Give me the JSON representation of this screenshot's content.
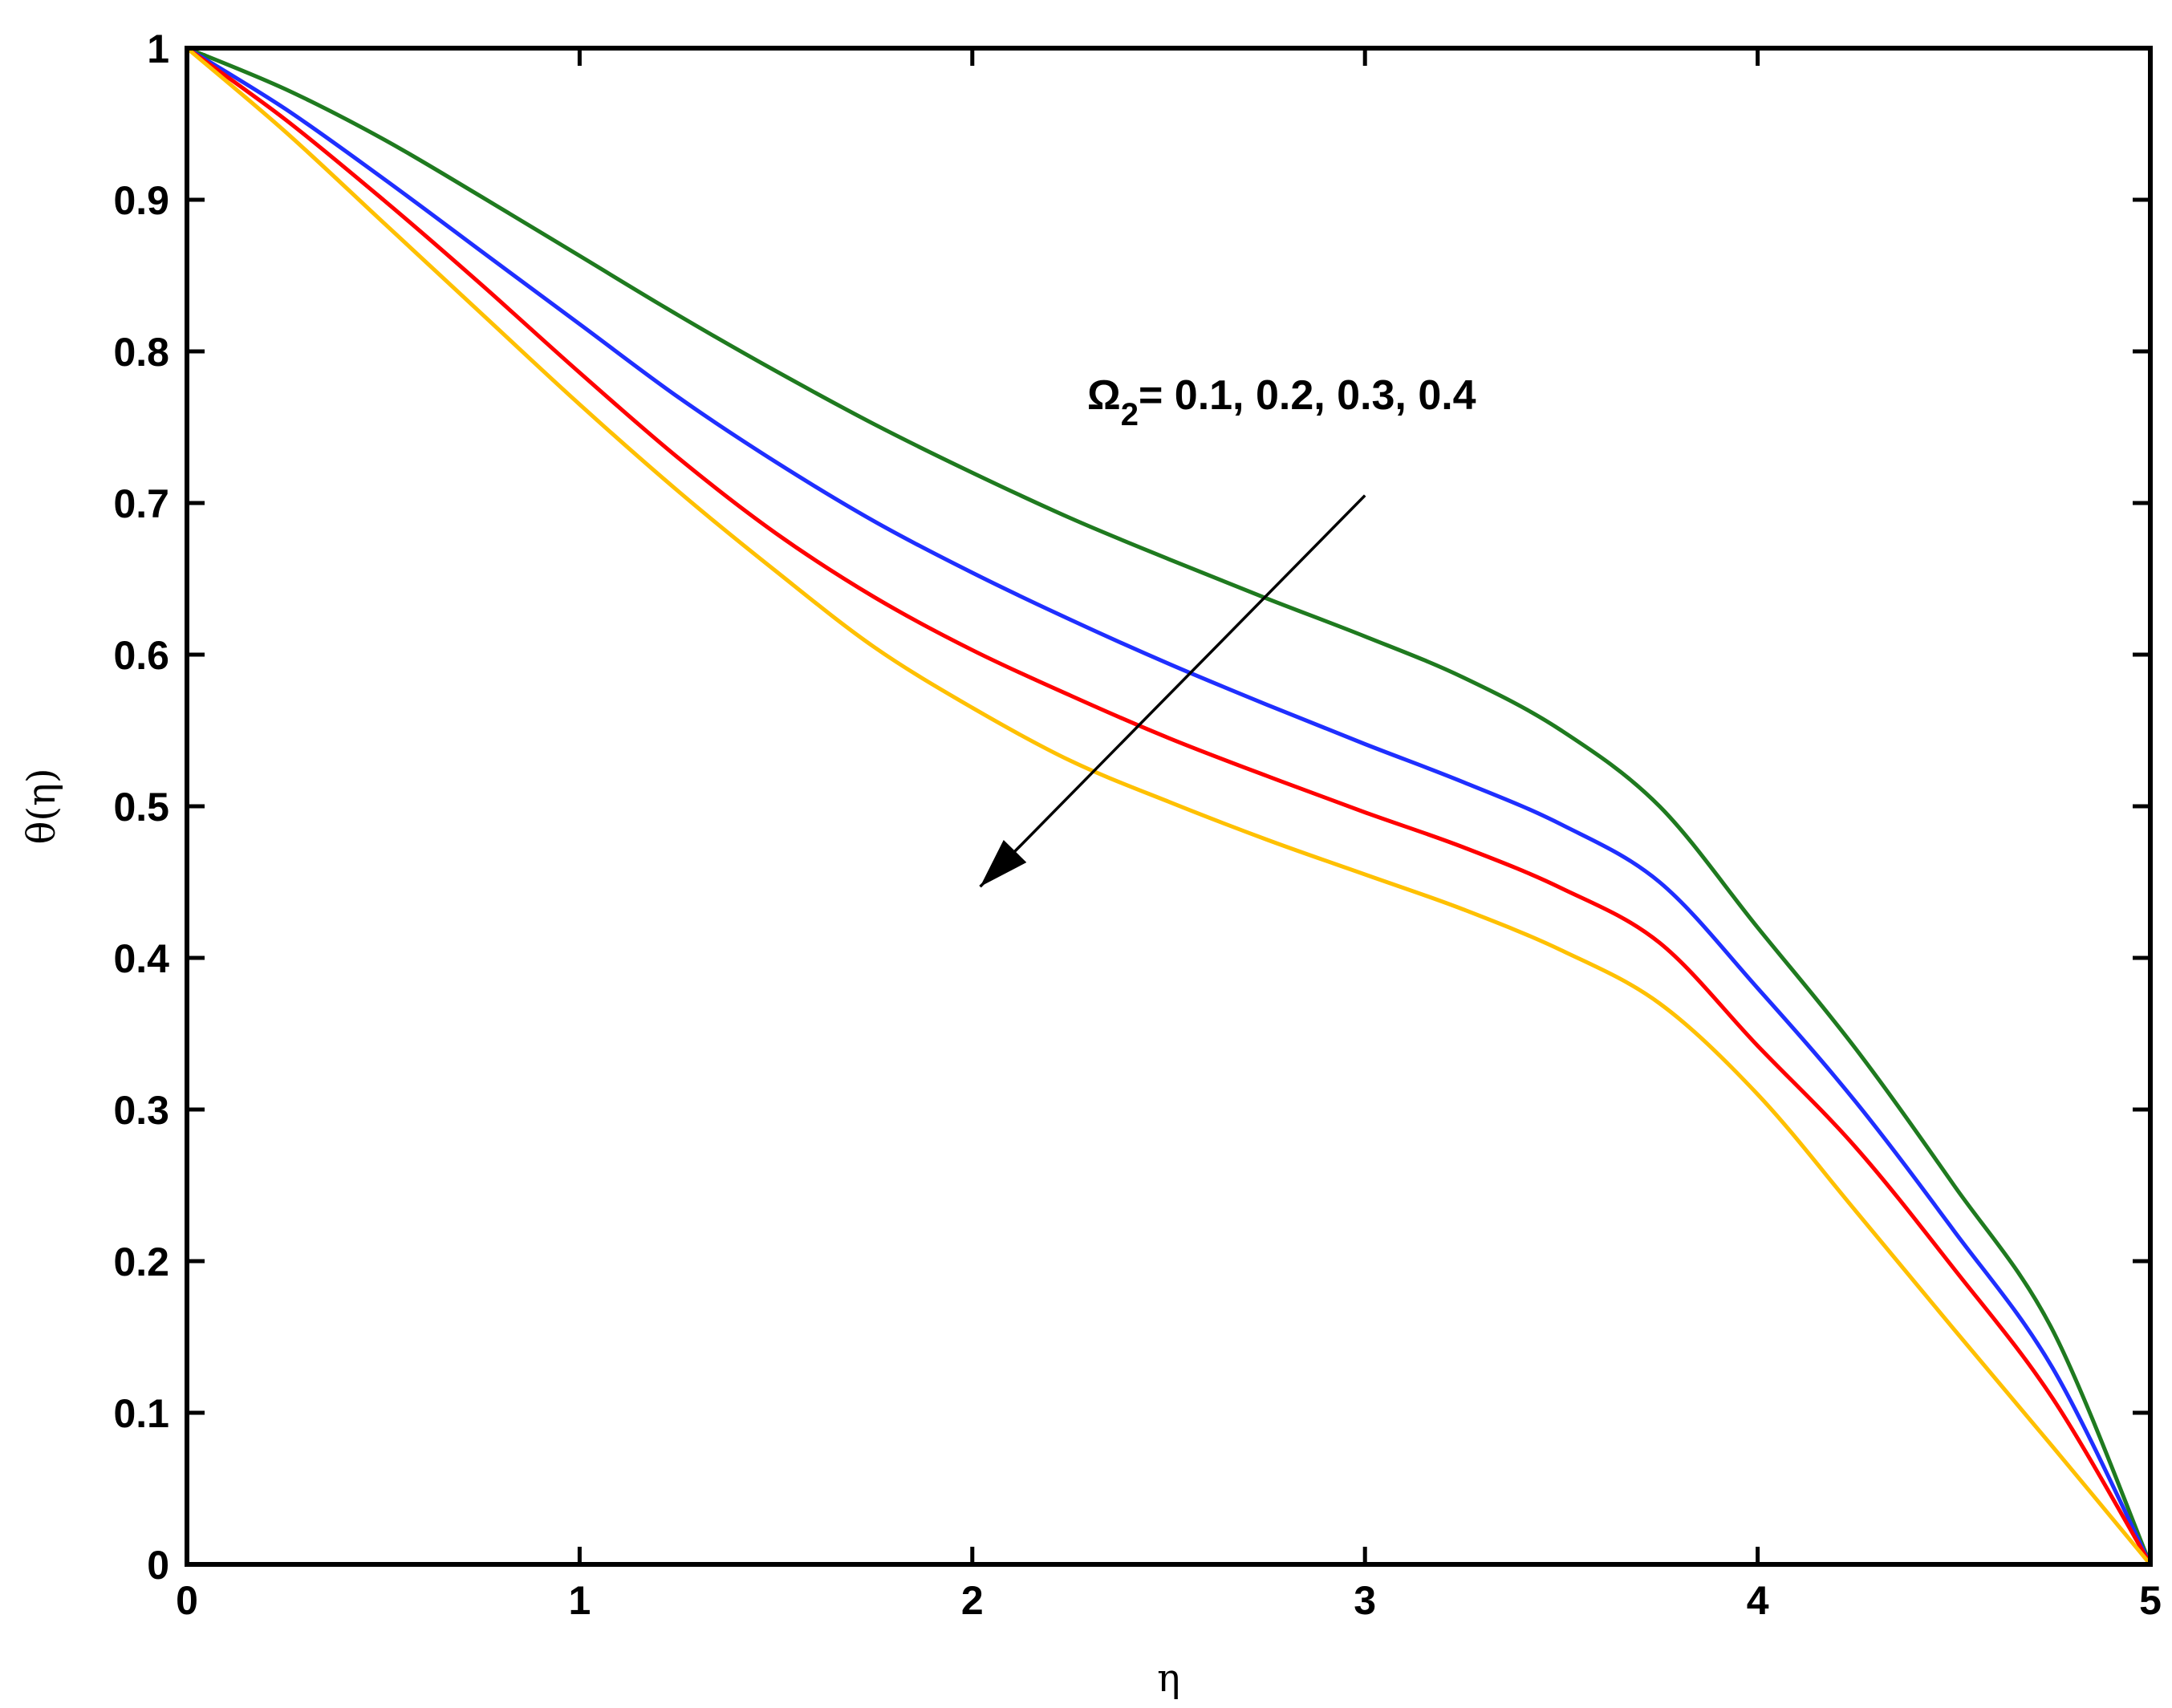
{
  "chart_data": {
    "type": "line",
    "title": "",
    "xlabel": "η",
    "ylabel": "θ(η)",
    "xlim": [
      0,
      5
    ],
    "ylim": [
      0,
      1
    ],
    "xticks": [
      0,
      1,
      2,
      3,
      4,
      5
    ],
    "xtick_labels": [
      "0",
      "1",
      "2",
      "3",
      "4",
      "5"
    ],
    "yticks": [
      0,
      0.1,
      0.2,
      0.3,
      0.4,
      0.5,
      0.6,
      0.7,
      0.8,
      0.9,
      1
    ],
    "ytick_labels": [
      "0",
      "0.1",
      "0.2",
      "0.3",
      "0.4",
      "0.5",
      "0.6",
      "0.7",
      "0.8",
      "0.9",
      "1"
    ],
    "grid": false,
    "annotation": {
      "symbol": "Ω",
      "subscript": "2",
      "text": "= 0.1, 0.2, 0.3, 0.4",
      "arrow_from": [
        3.0,
        0.705
      ],
      "arrow_to": [
        2.02,
        0.447
      ]
    },
    "series": [
      {
        "color": "#1f7a1f",
        "x": [
          0,
          0.25,
          0.5,
          0.75,
          1.0,
          1.25,
          1.5,
          1.75,
          2.0,
          2.25,
          2.5,
          2.75,
          3.0,
          3.25,
          3.5,
          3.75,
          4.0,
          4.25,
          4.5,
          4.75,
          5.0
        ],
        "y": [
          1.0,
          0.973,
          0.94,
          0.902,
          0.863,
          0.824,
          0.787,
          0.752,
          0.72,
          0.69,
          0.663,
          0.637,
          0.612,
          0.585,
          0.55,
          0.5,
          0.42,
          0.34,
          0.25,
          0.155,
          0.0
        ]
      },
      {
        "color": "#1f2fff",
        "x": [
          0,
          0.25,
          0.5,
          0.75,
          1.0,
          1.25,
          1.5,
          1.75,
          2.0,
          2.25,
          2.5,
          2.75,
          3.0,
          3.25,
          3.5,
          3.75,
          4.0,
          4.25,
          4.5,
          4.75,
          5.0
        ],
        "y": [
          1.0,
          0.96,
          0.914,
          0.866,
          0.818,
          0.77,
          0.727,
          0.688,
          0.654,
          0.623,
          0.594,
          0.567,
          0.541,
          0.516,
          0.488,
          0.45,
          0.38,
          0.305,
          0.22,
          0.13,
          0.0
        ]
      },
      {
        "color": "#ff0000",
        "x": [
          0,
          0.25,
          0.5,
          0.75,
          1.0,
          1.25,
          1.5,
          1.75,
          2.0,
          2.25,
          2.5,
          2.75,
          3.0,
          3.25,
          3.5,
          3.75,
          4.0,
          4.25,
          4.5,
          4.75,
          5.0
        ],
        "y": [
          1.0,
          0.953,
          0.9,
          0.844,
          0.786,
          0.73,
          0.68,
          0.638,
          0.603,
          0.573,
          0.545,
          0.52,
          0.496,
          0.473,
          0.446,
          0.41,
          0.342,
          0.275,
          0.195,
          0.11,
          0.0
        ]
      },
      {
        "color": "#ffc000",
        "x": [
          0,
          0.25,
          0.5,
          0.75,
          1.0,
          1.25,
          1.5,
          1.75,
          2.0,
          2.25,
          2.5,
          2.75,
          3.0,
          3.25,
          3.5,
          3.75,
          4.0,
          4.25,
          4.5,
          4.75,
          5.0
        ],
        "y": [
          1.0,
          0.945,
          0.885,
          0.825,
          0.765,
          0.708,
          0.655,
          0.605,
          0.565,
          0.53,
          0.503,
          0.478,
          0.455,
          0.432,
          0.405,
          0.37,
          0.31,
          0.233,
          0.155,
          0.078,
          0.0
        ]
      }
    ]
  }
}
